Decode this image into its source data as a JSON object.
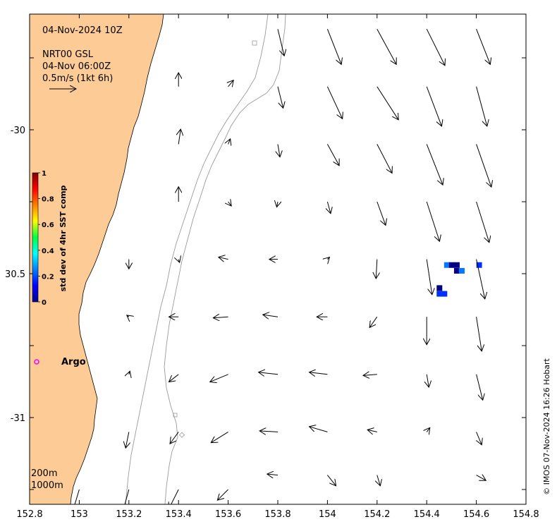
{
  "header": {
    "datetime": "04-Nov-2024 10Z",
    "product": "NRT00 GSL",
    "product_time": "04-Nov 06:00Z",
    "scale_label": "0.5m/s (1kt 6h)"
  },
  "colorbar": {
    "label": "std dev of 4hr SST comp",
    "ticks": [
      "0",
      "0.2",
      "0.4",
      "0.6",
      "0.8",
      "1"
    ]
  },
  "argo": {
    "label": "Argo",
    "marker_color": "#ff00ff"
  },
  "contours": {
    "labels": [
      "200m",
      "1000m"
    ]
  },
  "axes": {
    "x_ticks": [
      "152.8",
      "153",
      "153.2",
      "153.4",
      "153.6",
      "153.8",
      "154",
      "154.2",
      "154.4",
      "154.6",
      "154.8"
    ],
    "y_ticks": [
      "-30",
      "30.5",
      "-31"
    ],
    "x_range": [
      152.8,
      154.8
    ],
    "y_range": [
      -31.3,
      -29.6
    ]
  },
  "credit": "© IMOS 07-Nov-2024 16:26 Hobart",
  "colors": {
    "land": "#fccb96",
    "contour": "#9a9a9a",
    "sst_dark": "#000080",
    "sst_mid": "#0030ff",
    "sst_light": "#0078ff"
  },
  "current_vectors": [
    {
      "lon": 153.4,
      "lat": -29.85,
      "u": 0.0,
      "v": 0.26
    },
    {
      "lon": 153.6,
      "lat": -29.85,
      "u": 0.1,
      "v": 0.12
    },
    {
      "lon": 153.8,
      "lat": -29.65,
      "u": 0.12,
      "v": -0.5
    },
    {
      "lon": 154.0,
      "lat": -29.65,
      "u": 0.26,
      "v": -0.66
    },
    {
      "lon": 154.2,
      "lat": -29.65,
      "u": 0.36,
      "v": -0.66
    },
    {
      "lon": 154.4,
      "lat": -29.65,
      "u": 0.34,
      "v": -0.68
    },
    {
      "lon": 154.6,
      "lat": -29.65,
      "u": 0.26,
      "v": -0.66
    },
    {
      "lon": 153.4,
      "lat": -30.05,
      "u": 0.04,
      "v": 0.28
    },
    {
      "lon": 153.6,
      "lat": -30.05,
      "u": 0.04,
      "v": 0.1
    },
    {
      "lon": 153.8,
      "lat": -29.85,
      "u": 0.1,
      "v": -0.4
    },
    {
      "lon": 154.0,
      "lat": -29.85,
      "u": 0.28,
      "v": -0.6
    },
    {
      "lon": 154.2,
      "lat": -29.85,
      "u": 0.4,
      "v": -0.62
    },
    {
      "lon": 154.4,
      "lat": -29.85,
      "u": 0.28,
      "v": -0.74
    },
    {
      "lon": 154.6,
      "lat": -29.85,
      "u": 0.2,
      "v": -0.74
    },
    {
      "lon": 153.8,
      "lat": -30.05,
      "u": 0.04,
      "v": -0.24
    },
    {
      "lon": 154.0,
      "lat": -30.05,
      "u": 0.22,
      "v": -0.4
    },
    {
      "lon": 154.2,
      "lat": -30.05,
      "u": 0.28,
      "v": -0.54
    },
    {
      "lon": 154.4,
      "lat": -30.05,
      "u": 0.3,
      "v": -0.76
    },
    {
      "lon": 154.6,
      "lat": -30.05,
      "u": 0.28,
      "v": -0.8
    },
    {
      "lon": 153.4,
      "lat": -30.25,
      "u": 0.0,
      "v": 0.28
    },
    {
      "lon": 153.6,
      "lat": -30.25,
      "u": 0.06,
      "v": -0.08
    },
    {
      "lon": 153.8,
      "lat": -30.25,
      "u": -0.02,
      "v": -0.1
    },
    {
      "lon": 154.0,
      "lat": -30.25,
      "u": 0.06,
      "v": -0.22
    },
    {
      "lon": 154.2,
      "lat": -30.25,
      "u": 0.16,
      "v": -0.44
    },
    {
      "lon": 154.4,
      "lat": -30.25,
      "u": 0.24,
      "v": -0.74
    },
    {
      "lon": 154.6,
      "lat": -30.25,
      "u": 0.24,
      "v": -0.76
    },
    {
      "lon": 153.2,
      "lat": -30.45,
      "u": 0.0,
      "v": -0.18
    },
    {
      "lon": 153.4,
      "lat": -30.45,
      "u": 0.02,
      "v": -0.06
    },
    {
      "lon": 153.6,
      "lat": -30.45,
      "u": -0.18,
      "v": 0.04
    },
    {
      "lon": 153.8,
      "lat": -30.45,
      "u": -0.16,
      "v": 0.0
    },
    {
      "lon": 154.0,
      "lat": -30.45,
      "u": 0.04,
      "v": 0.04
    },
    {
      "lon": 154.2,
      "lat": -30.45,
      "u": -0.02,
      "v": -0.36
    },
    {
      "lon": 154.4,
      "lat": -30.45,
      "u": 0.1,
      "v": -0.66
    },
    {
      "lon": 154.6,
      "lat": -30.45,
      "u": 0.16,
      "v": -0.74
    },
    {
      "lon": 153.2,
      "lat": -30.65,
      "u": -0.04,
      "v": 0.03
    },
    {
      "lon": 153.4,
      "lat": -30.65,
      "u": -0.18,
      "v": 0.0
    },
    {
      "lon": 153.6,
      "lat": -30.65,
      "u": -0.28,
      "v": -0.02
    },
    {
      "lon": 153.8,
      "lat": -30.65,
      "u": -0.28,
      "v": 0.04
    },
    {
      "lon": 154.0,
      "lat": -30.65,
      "u": -0.2,
      "v": 0.0
    },
    {
      "lon": 154.2,
      "lat": -30.65,
      "u": -0.14,
      "v": -0.2
    },
    {
      "lon": 154.4,
      "lat": -30.65,
      "u": 0.0,
      "v": -0.52
    },
    {
      "lon": 154.6,
      "lat": -30.65,
      "u": 0.1,
      "v": -0.64
    },
    {
      "lon": 153.2,
      "lat": -30.85,
      "u": 0.02,
      "v": 0.06
    },
    {
      "lon": 153.4,
      "lat": -30.85,
      "u": -0.18,
      "v": -0.14
    },
    {
      "lon": 153.6,
      "lat": -30.85,
      "u": -0.34,
      "v": -0.14
    },
    {
      "lon": 153.8,
      "lat": -30.85,
      "u": -0.36,
      "v": 0.04
    },
    {
      "lon": 154.0,
      "lat": -30.85,
      "u": -0.34,
      "v": 0.04
    },
    {
      "lon": 154.2,
      "lat": -30.85,
      "u": -0.26,
      "v": -0.02
    },
    {
      "lon": 154.4,
      "lat": -30.85,
      "u": 0.04,
      "v": -0.24
    },
    {
      "lon": 154.6,
      "lat": -30.85,
      "u": 0.12,
      "v": -0.48
    },
    {
      "lon": 153.2,
      "lat": -31.05,
      "u": -0.06,
      "v": -0.3
    },
    {
      "lon": 153.4,
      "lat": -31.05,
      "u": -0.16,
      "v": -0.22
    },
    {
      "lon": 153.6,
      "lat": -31.05,
      "u": -0.32,
      "v": -0.2
    },
    {
      "lon": 153.8,
      "lat": -31.05,
      "u": -0.34,
      "v": 0.02
    },
    {
      "lon": 154.0,
      "lat": -31.05,
      "u": -0.34,
      "v": 0.1
    },
    {
      "lon": 154.2,
      "lat": -31.05,
      "u": -0.18,
      "v": 0.04
    },
    {
      "lon": 154.4,
      "lat": -31.05,
      "u": 0.06,
      "v": 0.08
    },
    {
      "lon": 154.6,
      "lat": -31.05,
      "u": 0.1,
      "v": -0.24
    },
    {
      "lon": 153.0,
      "lat": -31.25,
      "u": -0.12,
      "v": -0.4
    },
    {
      "lon": 153.2,
      "lat": -31.25,
      "u": -0.12,
      "v": -0.44
    },
    {
      "lon": 153.4,
      "lat": -31.25,
      "u": -0.18,
      "v": -0.36
    },
    {
      "lon": 153.6,
      "lat": -31.25,
      "u": -0.2,
      "v": -0.2
    },
    {
      "lon": 153.8,
      "lat": -31.2,
      "u": -0.2,
      "v": 0.02
    },
    {
      "lon": 154.0,
      "lat": -31.2,
      "u": 0.16,
      "v": -0.2
    },
    {
      "lon": 154.2,
      "lat": -31.2,
      "u": 0.06,
      "v": -0.2
    },
    {
      "lon": 154.6,
      "lat": -31.2,
      "u": 0.18,
      "v": -0.1
    }
  ],
  "sst_cells": [
    {
      "lon": 154.48,
      "lat": -30.47,
      "level": 0.15
    },
    {
      "lon": 154.5,
      "lat": -30.47,
      "level": 0.0
    },
    {
      "lon": 154.52,
      "lat": -30.47,
      "level": 0.0
    },
    {
      "lon": 154.52,
      "lat": -30.49,
      "level": 0.0
    },
    {
      "lon": 154.54,
      "lat": -30.49,
      "level": 0.12
    },
    {
      "lon": 154.61,
      "lat": -30.47,
      "level": 0.05
    },
    {
      "lon": 154.45,
      "lat": -30.55,
      "level": 0.0
    },
    {
      "lon": 154.45,
      "lat": -30.57,
      "level": 0.05
    },
    {
      "lon": 154.47,
      "lat": -30.57,
      "level": 0.05
    }
  ]
}
